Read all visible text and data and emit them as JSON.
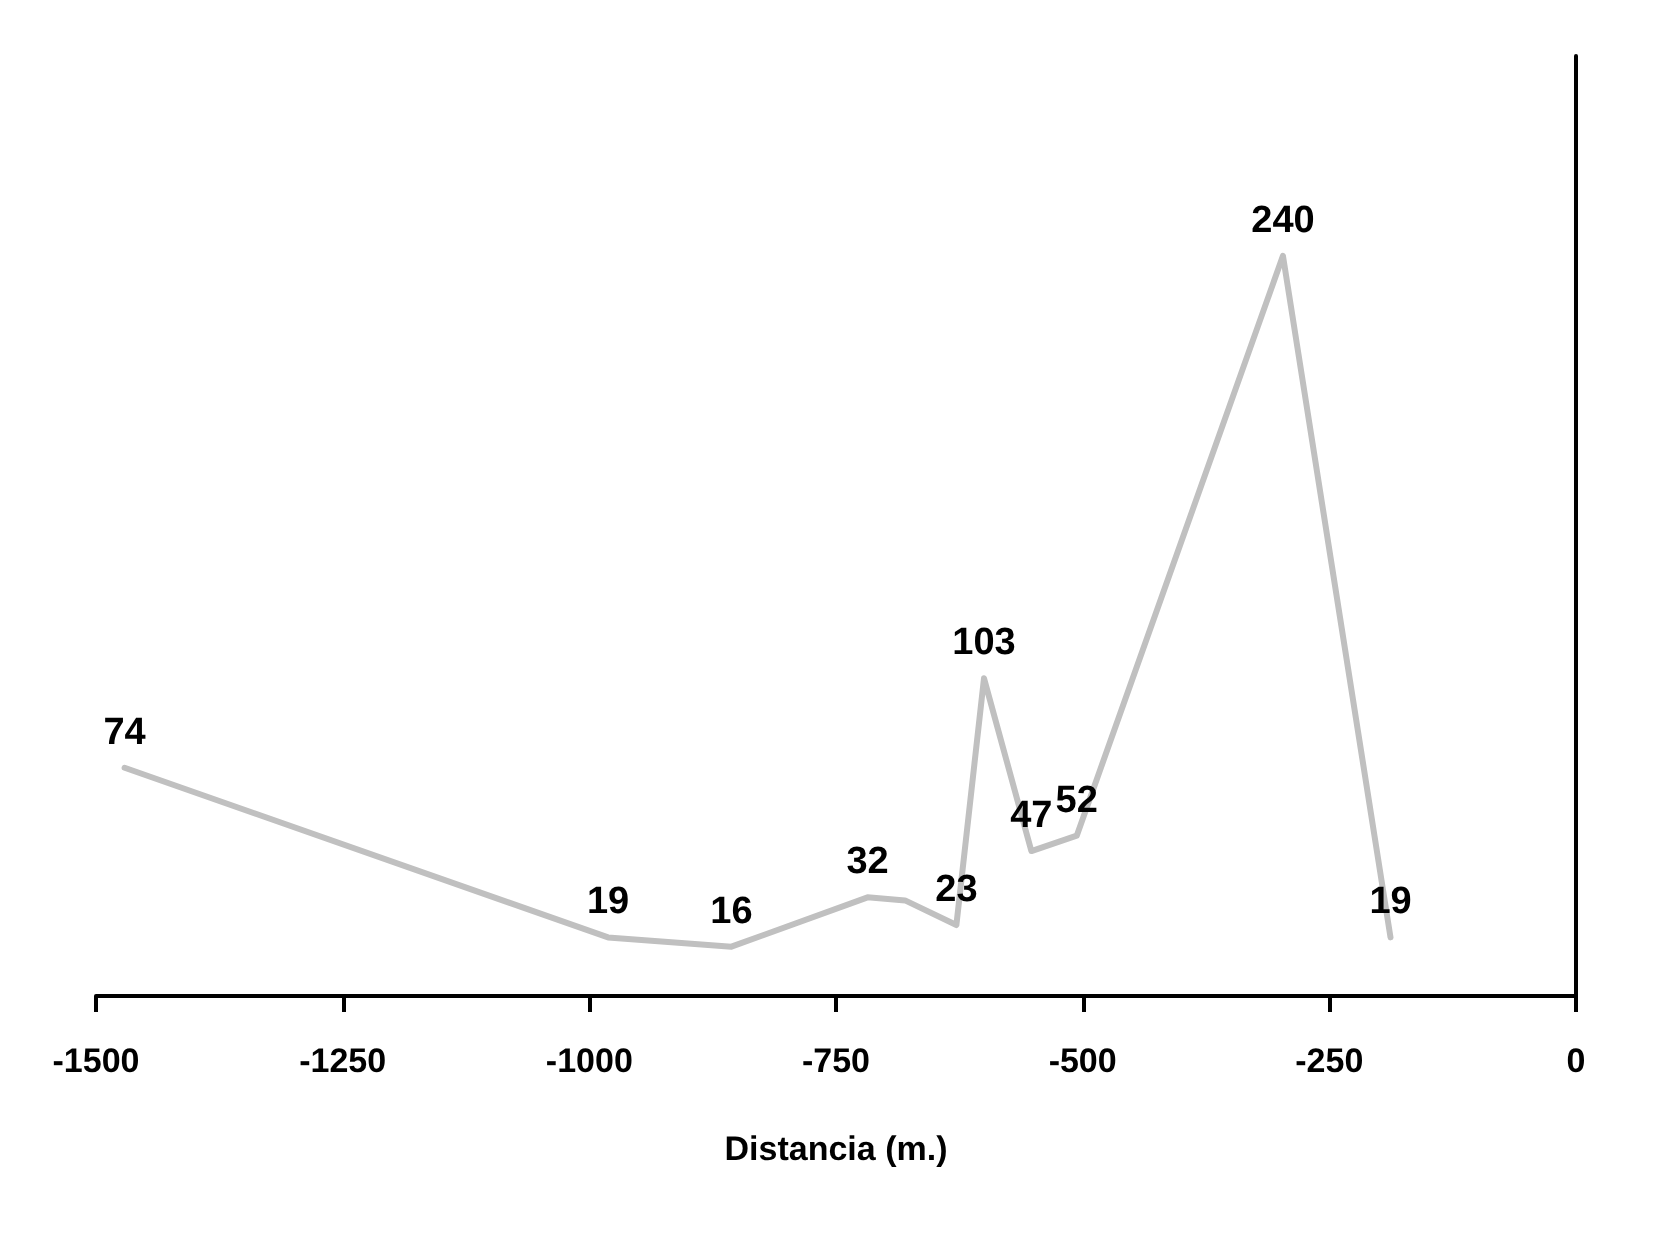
{
  "chart_data": {
    "type": "line",
    "xlabel": "Distancia (m.)",
    "x": [
      -1471,
      -981,
      -856,
      -718,
      -680,
      -628,
      -600,
      -552,
      -506,
      -297,
      -188
    ],
    "values": [
      74,
      19,
      16,
      32,
      31,
      23,
      103,
      47,
      52,
      240,
      19
    ],
    "value_labels": [
      "74",
      "19",
      "16",
      "32",
      null,
      "23",
      "103",
      "47",
      "52",
      "240",
      "19"
    ],
    "color": "#c0c0c0",
    "xlim": [
      -1500,
      0
    ],
    "xticks": [
      -1500,
      -1250,
      -1000,
      -750,
      -500,
      -250,
      0
    ],
    "tick_labels": "x",
    "grid": false,
    "marker": "none",
    "line_style": "solid"
  }
}
